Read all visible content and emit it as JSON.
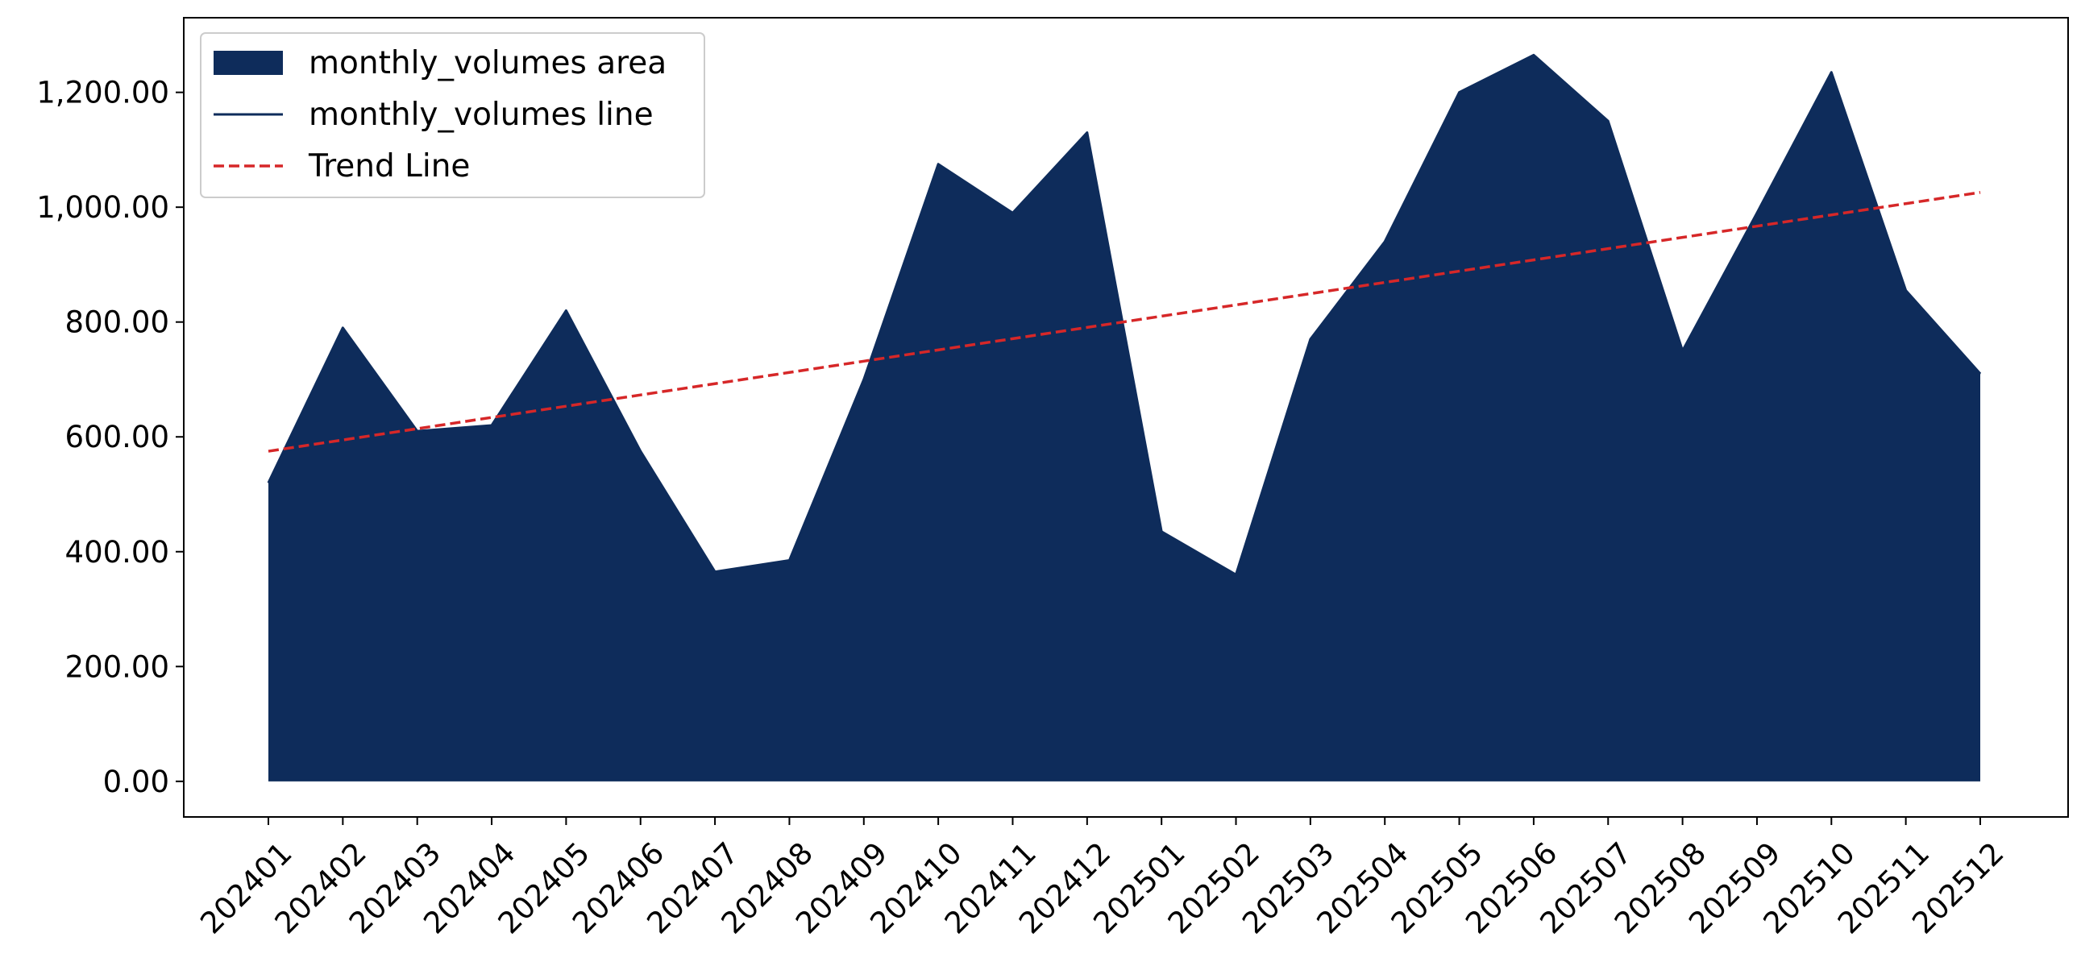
{
  "colors": {
    "area": "#0e2c5b",
    "line": "#0e2c5b",
    "trend": "#d62728",
    "axis": "#000000",
    "legend_border": "#cccccc",
    "background": "#ffffff"
  },
  "chart_data": {
    "type": "area",
    "title": "",
    "xlabel": "",
    "ylabel": "",
    "categories": [
      "202401",
      "202402",
      "202403",
      "202404",
      "202405",
      "202406",
      "202407",
      "202408",
      "202409",
      "202410",
      "202411",
      "202412",
      "202501",
      "202502",
      "202503",
      "202504",
      "202505",
      "202506",
      "202507",
      "202508",
      "202509",
      "202510",
      "202511",
      "202512"
    ],
    "y_ticks": [
      0,
      200,
      400,
      600,
      800,
      1000,
      1200
    ],
    "y_tick_labels": [
      "0.00",
      "200.00",
      "400.00",
      "600.00",
      "800.00",
      "1,000.00",
      "1,200.00"
    ],
    "ylim": [
      -62,
      1330
    ],
    "grid": false,
    "legend_position": "top-left",
    "series": [
      {
        "name": "monthly_volumes area",
        "kind": "area",
        "values": [
          520,
          790,
          610,
          620,
          820,
          575,
          365,
          385,
          700,
          1075,
          990,
          1130,
          435,
          360,
          770,
          940,
          1200,
          1265,
          1150,
          750,
          990,
          1235,
          855,
          710
        ]
      },
      {
        "name": "monthly_volumes line",
        "kind": "line",
        "values": [
          520,
          790,
          610,
          620,
          820,
          575,
          365,
          385,
          700,
          1075,
          990,
          1130,
          435,
          360,
          770,
          940,
          1200,
          1265,
          1150,
          750,
          990,
          1235,
          855,
          710
        ]
      },
      {
        "name": "Trend Line",
        "kind": "dashed-line",
        "values": [
          575,
          594.6,
          614.2,
          633.8,
          653.4,
          673,
          692.6,
          712.2,
          731.8,
          751.4,
          771,
          790.6,
          810.2,
          829.8,
          849.4,
          869,
          888.6,
          908.2,
          927.8,
          947.4,
          967,
          986.6,
          1006.2,
          1025.8
        ]
      }
    ]
  }
}
